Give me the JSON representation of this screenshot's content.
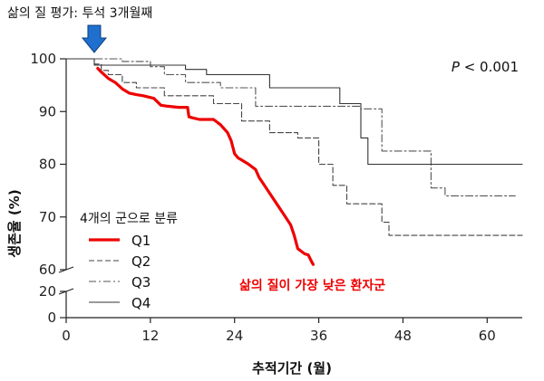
{
  "chart_data": {
    "type": "line",
    "title": "",
    "xlabel": "추적기간 (월)",
    "ylabel": "생존율 (%)",
    "x_ticks": [
      0,
      12,
      24,
      36,
      48,
      60
    ],
    "x_tick_labels": [
      "0",
      "12",
      "24",
      "36",
      "48",
      "60"
    ],
    "xlim": [
      0,
      65
    ],
    "y_ticks_upper": [
      60,
      70,
      80,
      90,
      100
    ],
    "y_tick_labels_upper": [
      "60",
      "70",
      "80",
      "90",
      "100"
    ],
    "y_ticks_lower": [
      0,
      20
    ],
    "y_tick_labels_lower": [
      "0",
      "20"
    ],
    "ylim": [
      0,
      100
    ],
    "y_axis_break": [
      20,
      60
    ],
    "grid": false,
    "legend_title": "4개의 군으로 분류",
    "legend_placement": "bottom-left",
    "series": [
      {
        "name": "Q1",
        "color": "#ee0000",
        "dash": "solid",
        "points": [
          [
            4.5,
            98.2
          ],
          [
            5,
            97.5
          ],
          [
            6,
            96.3
          ],
          [
            7,
            95.5
          ],
          [
            8,
            94.3
          ],
          [
            9,
            93.5
          ],
          [
            10,
            93.2
          ],
          [
            11,
            93
          ],
          [
            12.5,
            92.5
          ],
          [
            13.5,
            91.2
          ],
          [
            14.5,
            91
          ],
          [
            16,
            90.8
          ],
          [
            17.3,
            90.8
          ],
          [
            17.5,
            89
          ],
          [
            18,
            88.8
          ],
          [
            19,
            88.5
          ],
          [
            20,
            88.5
          ],
          [
            21,
            88.5
          ],
          [
            22,
            87.5
          ],
          [
            23,
            86
          ],
          [
            23.5,
            84.5
          ],
          [
            24,
            82
          ],
          [
            24.5,
            81.2
          ],
          [
            25,
            80.8
          ],
          [
            26,
            80
          ],
          [
            27,
            79
          ],
          [
            27.5,
            77.5
          ],
          [
            28,
            76.5
          ],
          [
            29,
            74.5
          ],
          [
            30,
            72.5
          ],
          [
            31,
            70.5
          ],
          [
            32,
            68.5
          ],
          [
            32.5,
            66.5
          ],
          [
            33,
            64
          ],
          [
            33.5,
            63.5
          ],
          [
            34,
            63
          ],
          [
            34.5,
            62.8
          ],
          [
            35,
            61.5
          ],
          [
            35.2,
            61
          ]
        ]
      },
      {
        "name": "Q2",
        "color": "#444444",
        "dash": "6,3",
        "points": [
          [
            0,
            100
          ],
          [
            4,
            100
          ],
          [
            4,
            99
          ],
          [
            5,
            99
          ],
          [
            5,
            97.8
          ],
          [
            6,
            97.8
          ],
          [
            6,
            97
          ],
          [
            8,
            97
          ],
          [
            8,
            95.5
          ],
          [
            10,
            95.5
          ],
          [
            10,
            94.5
          ],
          [
            14,
            94.5
          ],
          [
            14,
            93
          ],
          [
            21,
            93
          ],
          [
            21,
            91.5
          ],
          [
            25,
            91.5
          ],
          [
            25,
            88.2
          ],
          [
            29,
            88.2
          ],
          [
            29,
            86
          ],
          [
            33,
            86
          ],
          [
            33,
            85
          ],
          [
            36,
            85
          ],
          [
            36,
            80
          ],
          [
            38,
            80
          ],
          [
            38,
            76
          ],
          [
            40,
            76
          ],
          [
            40,
            72.5
          ],
          [
            45,
            72.5
          ],
          [
            45,
            69
          ],
          [
            46,
            69
          ],
          [
            46,
            66.5
          ],
          [
            65,
            66.5
          ]
        ]
      },
      {
        "name": "Q3",
        "color": "#555555",
        "dash": "8,3,2,3",
        "points": [
          [
            0,
            100
          ],
          [
            8,
            100
          ],
          [
            8,
            99.5
          ],
          [
            12,
            99.5
          ],
          [
            12,
            98.5
          ],
          [
            14,
            98.5
          ],
          [
            14,
            97
          ],
          [
            17,
            97
          ],
          [
            17,
            95.5
          ],
          [
            22,
            95.5
          ],
          [
            22,
            94.5
          ],
          [
            27,
            94.5
          ],
          [
            27,
            91
          ],
          [
            42,
            91
          ],
          [
            42,
            90.5
          ],
          [
            45,
            90.5
          ],
          [
            45,
            82.5
          ],
          [
            52,
            82.5
          ],
          [
            52,
            75.5
          ],
          [
            54,
            75.5
          ],
          [
            54,
            74
          ],
          [
            64,
            74
          ]
        ]
      },
      {
        "name": "Q4",
        "color": "#333333",
        "dash": "solid",
        "points": [
          [
            0,
            100
          ],
          [
            4,
            100
          ],
          [
            4,
            98.8
          ],
          [
            17,
            98.8
          ],
          [
            17,
            98
          ],
          [
            20,
            98
          ],
          [
            20,
            97
          ],
          [
            29,
            97
          ],
          [
            29,
            94.5
          ],
          [
            39,
            94.5
          ],
          [
            39,
            91.5
          ],
          [
            42,
            91.5
          ],
          [
            42,
            85
          ],
          [
            43,
            85
          ],
          [
            43,
            80
          ],
          [
            65,
            80
          ]
        ]
      }
    ],
    "annotations": {
      "assessment_label": "삶의 질 평가: 투석 3개월째",
      "assessment_arrow_x": 4,
      "p_value_italic": "P",
      "p_value_rest": " < 0.001",
      "highlight_label": "삶의 질이 가장 낮은 환자군",
      "highlight_color": "#ee0000",
      "arrow_color": "#1f6fcf"
    }
  }
}
